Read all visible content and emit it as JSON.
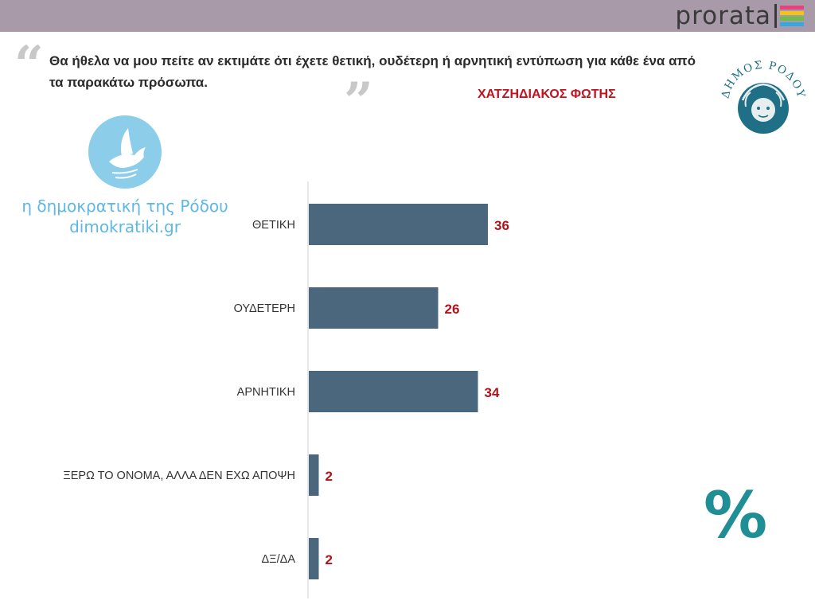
{
  "header": {
    "brand_name": "prorata",
    "brand_stripe_colors": [
      "#e8417c",
      "#f0c419",
      "#6cc04a",
      "#38a8e0"
    ]
  },
  "question": {
    "text": "Θα ήθελα να μου πείτε αν εκτιμάτε ότι έχετε θετική, ουδέτερη ή αρνητική εντύπωση για κάθε ένα από τα παρακάτω πρόσωπα."
  },
  "subject": "ΧΑΤΖΗΔΙΑΚΟΣ ΦΩΤΗΣ",
  "seal": {
    "text": "ΔΗΜΟΣ ΡΟΔΟΥ",
    "color": "#1f6f86"
  },
  "watermark": {
    "line1": "η δημοκρατική της Ρόδου",
    "line2": "dimokratiki.gr",
    "icon": "dove-icon",
    "color": "#5fb7e5"
  },
  "percent_symbol": "%",
  "chart_data": {
    "type": "bar",
    "orientation": "horizontal",
    "categories": [
      "ΘΕΤΙΚΗ",
      "ΟΥΔΕΤΕΡΗ",
      "ΑΡΝΗΤΙΚΗ",
      "ΞΕΡΩ ΤΟ ΟΝΟΜΑ, ΑΛΛΑ ΔΕΝ ΕΧΩ ΑΠΟΨΗ",
      "ΔΞ/ΔΑ"
    ],
    "values": [
      36,
      26,
      34,
      2,
      2
    ],
    "value_labels": [
      "36",
      "26",
      "34",
      "2",
      "2"
    ],
    "unit": "%",
    "xlim": [
      0,
      100
    ],
    "grid": false,
    "legend": "none",
    "bar_color": "#4a677d",
    "value_label_color": "#b11219"
  }
}
